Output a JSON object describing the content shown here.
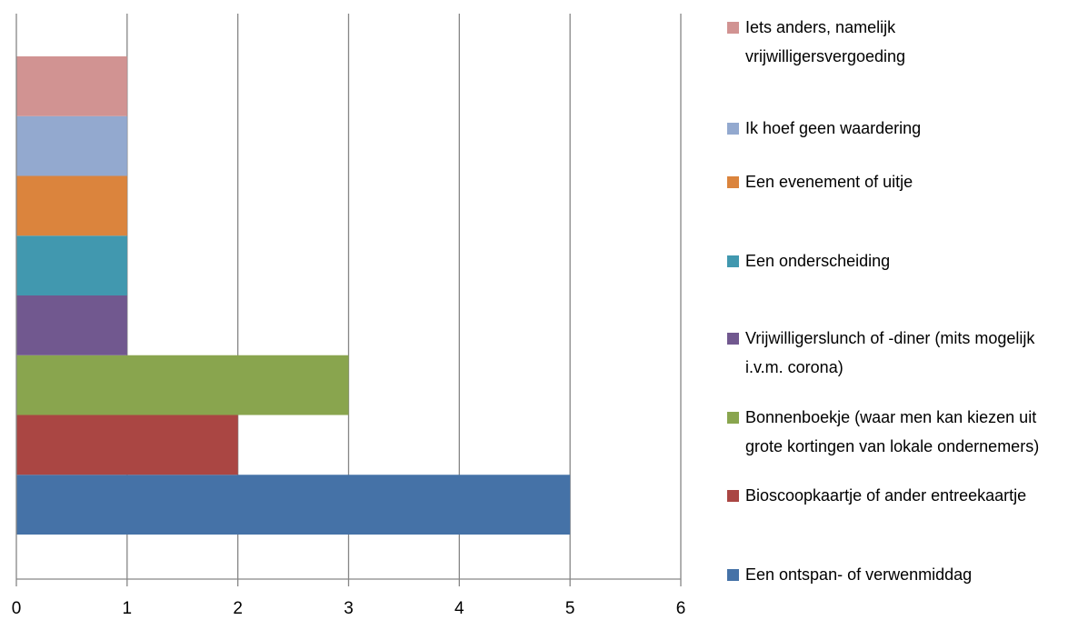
{
  "chart_data": {
    "type": "bar",
    "orientation": "horizontal",
    "categories": [
      null
    ],
    "series": [
      {
        "name": "Een ontspan- of verwenmiddag",
        "color": "#4572a7",
        "values": [
          5
        ]
      },
      {
        "name": "Bioscoopkaartje of ander entreekaartje",
        "color": "#aa4643",
        "values": [
          2
        ]
      },
      {
        "name": "Bonnenboekje (waar men kan kiezen uit grote kortingen van lokale ondernemers)",
        "color": "#89a54e",
        "values": [
          3
        ]
      },
      {
        "name": "Vrijwilligerslunch of -diner (mits mogelijk i.v.m. corona)",
        "color": "#71588f",
        "values": [
          1
        ]
      },
      {
        "name": "Een onderscheiding",
        "color": "#4198af",
        "values": [
          1
        ]
      },
      {
        "name": "Een evenement of uitje",
        "color": "#db843d",
        "values": [
          1
        ]
      },
      {
        "name": "Ik hoef geen waardering",
        "color": "#93a9cf",
        "values": [
          1
        ]
      },
      {
        "name": "Iets anders, namelijk vrijwilligersvergoeding",
        "color": "#d19392",
        "values": [
          1
        ]
      }
    ],
    "xlim": [
      0,
      6
    ],
    "xticks": [
      0,
      1,
      2,
      3,
      4,
      5,
      6
    ],
    "grid": true,
    "legend": "right"
  }
}
